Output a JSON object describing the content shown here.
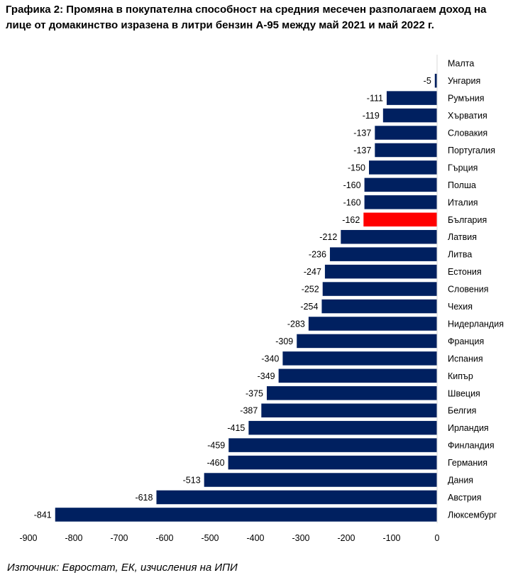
{
  "chart_data": {
    "type": "bar",
    "orientation": "horizontal",
    "title": "Графика 2: Промяна в покупателна способност на средния месечен разполагаем доход на лице от домакинство изразена в литри бензин А-95 между май 2021 и май 2022 г.",
    "categories": [
      "Малта",
      "Унгария",
      "Румъния",
      "Хърватия",
      "Словакия",
      "Португалия",
      "Гърция",
      "Полша",
      "Италия",
      "България",
      "Латвия",
      "Литва",
      "Естония",
      "Словения",
      "Чехия",
      "Нидерландия",
      "Франция",
      "Испания",
      "Кипър",
      "Швеция",
      "Белгия",
      "Ирландия",
      "Финландия",
      "Германия",
      "Дания",
      "Австрия",
      "Люксембург"
    ],
    "values": [
      null,
      -5,
      -111,
      -119,
      -137,
      -137,
      -150,
      -160,
      -160,
      -162,
      -212,
      -236,
      -247,
      -252,
      -254,
      -283,
      -309,
      -340,
      -349,
      -375,
      -387,
      -415,
      -459,
      -460,
      -513,
      -618,
      -841
    ],
    "data_labels": [
      "",
      "-5",
      "-111",
      "-119",
      "-137",
      "-137",
      "-150",
      "-160",
      "-160",
      "-162",
      "-212",
      "-236",
      "-247",
      "-252",
      "-254",
      "-283",
      "-309",
      "-340",
      "-349",
      "-375",
      "-387",
      "-415",
      "-459",
      "-460",
      "-513",
      "-618",
      "-841"
    ],
    "highlight": "България",
    "xlim": [
      -900,
      0
    ],
    "x_ticks": [
      -900,
      -800,
      -700,
      -600,
      -500,
      -400,
      -300,
      -200,
      -100,
      0
    ],
    "x_tick_labels": [
      "-900",
      "-800",
      "-700",
      "-600",
      "-500",
      "-400",
      "-300",
      "-200",
      "-100",
      "0"
    ],
    "grid": false,
    "colors": {
      "bar": "#002060",
      "highlight": "#ff0000"
    },
    "source": "Източник: Евростат, ЕК, изчисления на ИПИ"
  }
}
